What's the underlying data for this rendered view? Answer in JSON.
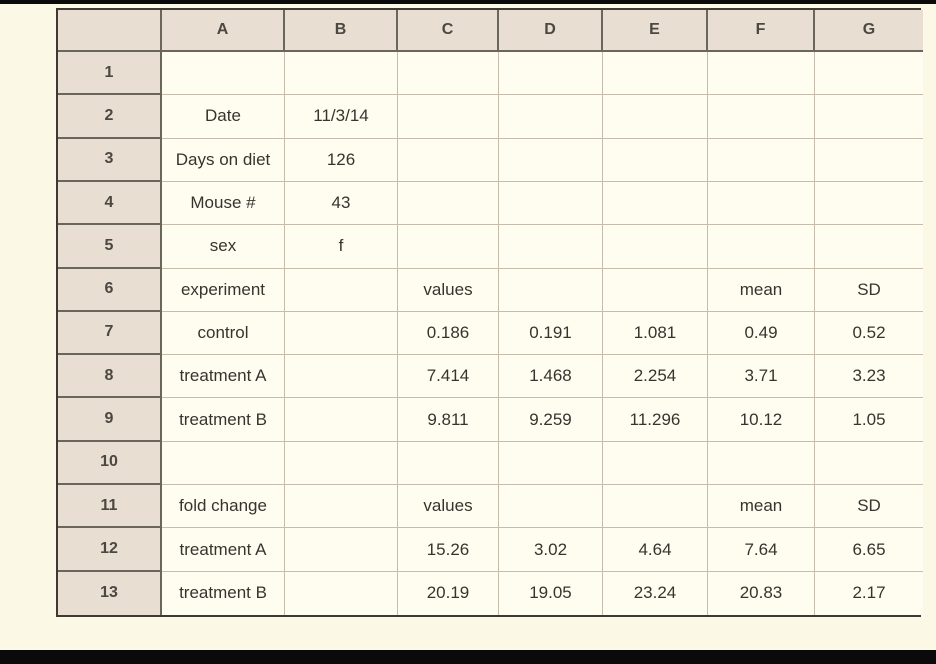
{
  "page": {
    "background_color": "#fbf8e6",
    "letterbox_color": "#0a0a0a"
  },
  "spreadsheet": {
    "colors": {
      "header_background": "#e8ded2",
      "cell_background": "#fffdf0",
      "dark_border": "#6b665c",
      "light_border": "#c6bcab",
      "text": "#37342f"
    },
    "column_headers": [
      "",
      "A",
      "B",
      "C",
      "D",
      "E",
      "F",
      "G"
    ],
    "rows": [
      {
        "num": "1",
        "cells": [
          "",
          "",
          "",
          "",
          "",
          "",
          ""
        ]
      },
      {
        "num": "2",
        "cells": [
          "Date",
          "11/3/14",
          "",
          "",
          "",
          "",
          ""
        ]
      },
      {
        "num": "3",
        "cells": [
          "Days on diet",
          "126",
          "",
          "",
          "",
          "",
          ""
        ]
      },
      {
        "num": "4",
        "cells": [
          "Mouse #",
          "43",
          "",
          "",
          "",
          "",
          ""
        ]
      },
      {
        "num": "5",
        "cells": [
          "sex",
          "f",
          "",
          "",
          "",
          "",
          ""
        ]
      },
      {
        "num": "6",
        "cells": [
          "experiment",
          "",
          "values",
          "",
          "",
          "mean",
          "SD"
        ]
      },
      {
        "num": "7",
        "cells": [
          "control",
          "",
          "0.186",
          "0.191",
          "1.081",
          "0.49",
          "0.52"
        ]
      },
      {
        "num": "8",
        "cells": [
          "treatment A",
          "",
          "7.414",
          "1.468",
          "2.254",
          "3.71",
          "3.23"
        ]
      },
      {
        "num": "9",
        "cells": [
          "treatment B",
          "",
          "9.811",
          "9.259",
          "11.296",
          "10.12",
          "1.05"
        ]
      },
      {
        "num": "10",
        "cells": [
          "",
          "",
          "",
          "",
          "",
          "",
          ""
        ]
      },
      {
        "num": "11",
        "cells": [
          "fold change",
          "",
          "values",
          "",
          "",
          "mean",
          "SD"
        ]
      },
      {
        "num": "12",
        "cells": [
          "treatment A",
          "",
          "15.26",
          "3.02",
          "4.64",
          "7.64",
          "6.65"
        ]
      },
      {
        "num": "13",
        "cells": [
          "treatment B",
          "",
          "20.19",
          "19.05",
          "23.24",
          "20.83",
          "2.17"
        ]
      }
    ]
  }
}
